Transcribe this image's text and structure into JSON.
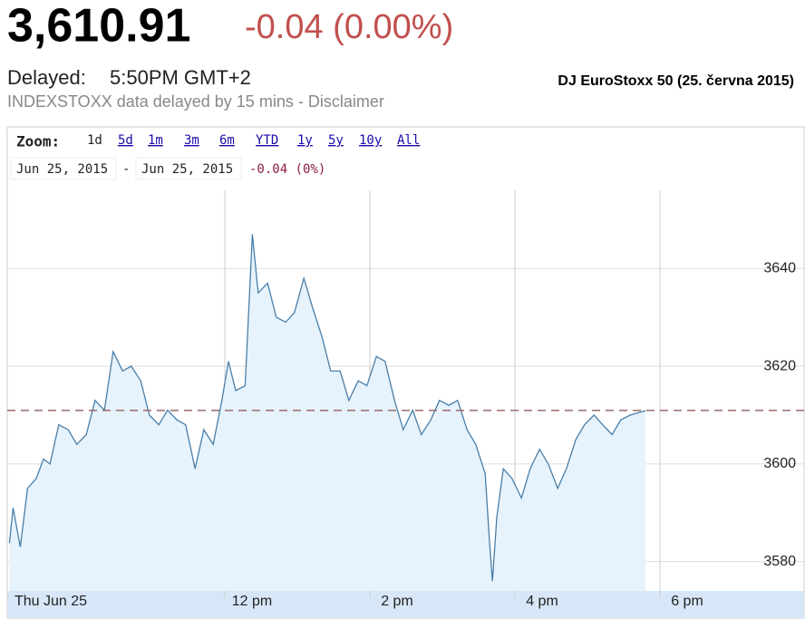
{
  "header": {
    "price": "3,610.91",
    "change": "-0.04 (0.00%)",
    "delayed_label": "Delayed:",
    "delayed_time": "5:50PM GMT+2",
    "disclaimer": "INDEXSTOXX data delayed by 15 mins - Disclaimer",
    "caption": "DJ EuroStoxx 50 (25. června 2015)"
  },
  "toolbar": {
    "zoom_label": "Zoom:",
    "buttons": [
      "1d",
      "5d",
      "1m",
      "3m",
      "6m",
      "YTD",
      "1y",
      "5y",
      "10y",
      "All"
    ],
    "from": "Jun 25, 2015",
    "separator": "-",
    "to": "Jun 25, 2015",
    "range_change": "-0.04 (0%)"
  },
  "chart_data": {
    "type": "area",
    "x": [
      9.03,
      9.08,
      9.18,
      9.28,
      9.4,
      9.5,
      9.59,
      9.71,
      9.84,
      9.96,
      10.09,
      10.21,
      10.34,
      10.46,
      10.59,
      10.71,
      10.84,
      10.96,
      11.09,
      11.21,
      11.34,
      11.46,
      11.59,
      11.71,
      11.84,
      11.96,
      12.05,
      12.15,
      12.28,
      12.38,
      12.46,
      12.59,
      12.71,
      12.84,
      12.96,
      13.09,
      13.21,
      13.34,
      13.46,
      13.59,
      13.71,
      13.84,
      13.96,
      14.09,
      14.21,
      14.34,
      14.46,
      14.59,
      14.71,
      14.84,
      14.96,
      15.09,
      15.21,
      15.34,
      15.46,
      15.59,
      15.65,
      15.69,
      15.75,
      15.84,
      15.96,
      16.09,
      16.21,
      16.34,
      16.46,
      16.59,
      16.71,
      16.84,
      16.96,
      17.09,
      17.21,
      17.34,
      17.46,
      17.59,
      17.8
    ],
    "values": [
      3583.8,
      3591,
      3583,
      3595,
      3597,
      3601,
      3600,
      3608,
      3607,
      3604,
      3606,
      3613,
      3611,
      3623,
      3619,
      3620,
      3617,
      3610,
      3608,
      3611,
      3609,
      3608,
      3599,
      3607,
      3604,
      3613,
      3621,
      3615,
      3616,
      3647,
      3635,
      3637,
      3630,
      3629,
      3631,
      3638,
      3632,
      3626,
      3619,
      3619,
      3613,
      3617,
      3616,
      3622,
      3621,
      3613,
      3607,
      3611,
      3606,
      3609,
      3613,
      3612,
      3613,
      3607,
      3604,
      3598,
      3584,
      3576,
      3589,
      3599,
      3597,
      3593,
      3599,
      3603,
      3600,
      3595,
      3599,
      3605,
      3608,
      3610,
      3608,
      3606,
      3609,
      3610,
      3610.9
    ],
    "color": "#4a7ea8",
    "fill_color": "#e6f3fc",
    "previous_close": 3610.95,
    "previous_close_color": "#9a6a6a",
    "xlim": [
      9,
      20
    ],
    "xticks": [
      {
        "value": 9,
        "label": "Thu Jun 25"
      },
      {
        "value": 12,
        "label": "12 pm"
      },
      {
        "value": 14,
        "label": "2 pm"
      },
      {
        "value": 16,
        "label": "4 pm"
      },
      {
        "value": 18,
        "label": "6 pm"
      }
    ],
    "ylim": [
      3574,
      3656
    ],
    "yticks": [
      3580,
      3600,
      3620,
      3640
    ],
    "grid": true
  }
}
